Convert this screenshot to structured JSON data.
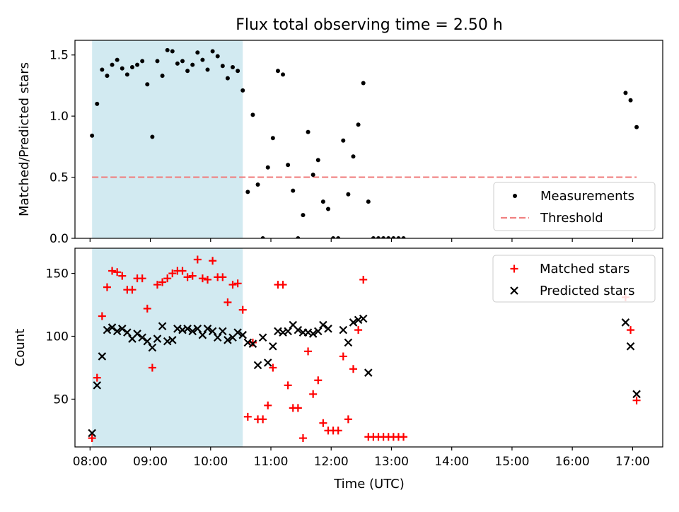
{
  "title": "Flux total observing time = 2.50 h",
  "xlabel": "Time (UTC)",
  "chart_data": [
    {
      "type": "scatter",
      "ylabel": "Matched/Predicted stars",
      "xlim": [
        "07:45",
        "17:30"
      ],
      "ylim": [
        0,
        1.62
      ],
      "yticks": [
        "0.0",
        "0.5",
        "1.0",
        "1.5"
      ],
      "xticks": [
        "08:00",
        "09:00",
        "10:00",
        "11:00",
        "12:00",
        "13:00",
        "14:00",
        "15:00",
        "16:00",
        "17:00"
      ],
      "shaded_span": [
        "08:02",
        "10:32"
      ],
      "shaded_color": "#add8e6",
      "legend_position": "lower right",
      "threshold": {
        "name": "Threshold",
        "value": 0.5,
        "x_range": [
          "08:02",
          "17:04"
        ],
        "color": "#f08080",
        "style": "dashed"
      },
      "series": [
        {
          "name": "Measurements",
          "color": "#000000",
          "marker": "point",
          "points": [
            [
              "08:02",
              0.84
            ],
            [
              "08:07",
              1.1
            ],
            [
              "08:12",
              1.38
            ],
            [
              "08:17",
              1.33
            ],
            [
              "08:22",
              1.42
            ],
            [
              "08:27",
              1.46
            ],
            [
              "08:32",
              1.39
            ],
            [
              "08:37",
              1.34
            ],
            [
              "08:42",
              1.4
            ],
            [
              "08:47",
              1.42
            ],
            [
              "08:52",
              1.45
            ],
            [
              "08:57",
              1.26
            ],
            [
              "09:02",
              0.83
            ],
            [
              "09:07",
              1.45
            ],
            [
              "09:12",
              1.33
            ],
            [
              "09:17",
              1.54
            ],
            [
              "09:22",
              1.53
            ],
            [
              "09:27",
              1.43
            ],
            [
              "09:32",
              1.45
            ],
            [
              "09:37",
              1.37
            ],
            [
              "09:42",
              1.42
            ],
            [
              "09:47",
              1.52
            ],
            [
              "09:52",
              1.46
            ],
            [
              "09:57",
              1.38
            ],
            [
              "10:02",
              1.53
            ],
            [
              "10:07",
              1.49
            ],
            [
              "10:12",
              1.41
            ],
            [
              "10:17",
              1.31
            ],
            [
              "10:22",
              1.4
            ],
            [
              "10:27",
              1.37
            ],
            [
              "10:32",
              1.21
            ],
            [
              "10:37",
              0.38
            ],
            [
              "10:42",
              1.01
            ],
            [
              "10:47",
              0.44
            ],
            [
              "10:52",
              0.0
            ],
            [
              "10:57",
              0.58
            ],
            [
              "11:02",
              0.82
            ],
            [
              "11:07",
              1.37
            ],
            [
              "11:12",
              1.34
            ],
            [
              "11:17",
              0.6
            ],
            [
              "11:22",
              0.39
            ],
            [
              "11:27",
              0.0
            ],
            [
              "11:32",
              0.19
            ],
            [
              "11:37",
              0.87
            ],
            [
              "11:42",
              0.52
            ],
            [
              "11:47",
              0.64
            ],
            [
              "11:52",
              0.3
            ],
            [
              "11:57",
              0.24
            ],
            [
              "12:02",
              0.0
            ],
            [
              "12:07",
              0.0
            ],
            [
              "12:12",
              0.8
            ],
            [
              "12:17",
              0.36
            ],
            [
              "12:22",
              0.67
            ],
            [
              "12:27",
              0.93
            ],
            [
              "12:32",
              1.27
            ],
            [
              "12:37",
              0.3
            ],
            [
              "12:42",
              0.0
            ],
            [
              "12:47",
              0.0
            ],
            [
              "12:52",
              0.0
            ],
            [
              "12:57",
              0.0
            ],
            [
              "13:02",
              0.0
            ],
            [
              "13:07",
              0.0
            ],
            [
              "13:12",
              0.0
            ],
            [
              "16:53",
              1.19
            ],
            [
              "16:58",
              1.13
            ],
            [
              "17:04",
              0.91
            ]
          ]
        }
      ]
    },
    {
      "type": "scatter",
      "ylabel": "Count",
      "xlim": [
        "07:45",
        "17:30"
      ],
      "ylim": [
        12,
        170
      ],
      "yticks": [
        "50",
        "100",
        "150"
      ],
      "xticks": [
        "08:00",
        "09:00",
        "10:00",
        "11:00",
        "12:00",
        "13:00",
        "14:00",
        "15:00",
        "16:00",
        "17:00"
      ],
      "shaded_span": [
        "08:02",
        "10:32"
      ],
      "shaded_color": "#add8e6",
      "legend_position": "upper right",
      "series": [
        {
          "name": "Matched stars",
          "color": "#ff0000",
          "marker": "plus",
          "points": [
            [
              "08:02",
              19
            ],
            [
              "08:07",
              67
            ],
            [
              "08:12",
              116
            ],
            [
              "08:17",
              139
            ],
            [
              "08:22",
              152
            ],
            [
              "08:27",
              151
            ],
            [
              "08:32",
              148
            ],
            [
              "08:37",
              137
            ],
            [
              "08:42",
              137
            ],
            [
              "08:47",
              146
            ],
            [
              "08:52",
              146
            ],
            [
              "08:57",
              122
            ],
            [
              "09:02",
              75
            ],
            [
              "09:07",
              141
            ],
            [
              "09:12",
              143
            ],
            [
              "09:17",
              146
            ],
            [
              "09:22",
              150
            ],
            [
              "09:27",
              152
            ],
            [
              "09:32",
              152
            ],
            [
              "09:37",
              147
            ],
            [
              "09:42",
              148
            ],
            [
              "09:47",
              161
            ],
            [
              "09:52",
              146
            ],
            [
              "09:57",
              145
            ],
            [
              "10:02",
              160
            ],
            [
              "10:07",
              147
            ],
            [
              "10:12",
              147
            ],
            [
              "10:17",
              127
            ],
            [
              "10:22",
              141
            ],
            [
              "10:27",
              142
            ],
            [
              "10:32",
              121
            ],
            [
              "10:37",
              36
            ],
            [
              "10:42",
              95
            ],
            [
              "10:47",
              34
            ],
            [
              "10:52",
              34
            ],
            [
              "10:57",
              45
            ],
            [
              "11:02",
              75
            ],
            [
              "11:07",
              141
            ],
            [
              "11:12",
              141
            ],
            [
              "11:17",
              61
            ],
            [
              "11:22",
              43
            ],
            [
              "11:27",
              43
            ],
            [
              "11:32",
              19
            ],
            [
              "11:37",
              88
            ],
            [
              "11:42",
              54
            ],
            [
              "11:47",
              65
            ],
            [
              "11:52",
              31
            ],
            [
              "11:57",
              25
            ],
            [
              "12:02",
              25
            ],
            [
              "12:07",
              25
            ],
            [
              "12:12",
              84
            ],
            [
              "12:17",
              34
            ],
            [
              "12:22",
              74
            ],
            [
              "12:27",
              105
            ],
            [
              "12:32",
              145
            ],
            [
              "12:37",
              20
            ],
            [
              "12:42",
              20
            ],
            [
              "12:47",
              20
            ],
            [
              "12:52",
              20
            ],
            [
              "12:57",
              20
            ],
            [
              "13:02",
              20
            ],
            [
              "13:07",
              20
            ],
            [
              "13:12",
              20
            ],
            [
              "16:53",
              131
            ],
            [
              "16:58",
              105
            ],
            [
              "17:04",
              49
            ]
          ]
        },
        {
          "name": "Predicted stars",
          "color": "#000000",
          "marker": "x",
          "points": [
            [
              "08:02",
              23
            ],
            [
              "08:07",
              61
            ],
            [
              "08:12",
              84
            ],
            [
              "08:17",
              105
            ],
            [
              "08:22",
              107
            ],
            [
              "08:27",
              104
            ],
            [
              "08:32",
              106
            ],
            [
              "08:37",
              103
            ],
            [
              "08:42",
              98
            ],
            [
              "08:47",
              102
            ],
            [
              "08:52",
              99
            ],
            [
              "08:57",
              96
            ],
            [
              "09:02",
              91
            ],
            [
              "09:07",
              98
            ],
            [
              "09:12",
              108
            ],
            [
              "09:17",
              96
            ],
            [
              "09:22",
              97
            ],
            [
              "09:27",
              106
            ],
            [
              "09:32",
              105
            ],
            [
              "09:37",
              106
            ],
            [
              "09:42",
              104
            ],
            [
              "09:47",
              106
            ],
            [
              "09:52",
              101
            ],
            [
              "09:57",
              106
            ],
            [
              "10:02",
              104
            ],
            [
              "10:07",
              99
            ],
            [
              "10:12",
              104
            ],
            [
              "10:17",
              97
            ],
            [
              "10:22",
              99
            ],
            [
              "10:27",
              103
            ],
            [
              "10:32",
              101
            ],
            [
              "10:37",
              95
            ],
            [
              "10:42",
              94
            ],
            [
              "10:47",
              77
            ],
            [
              "10:52",
              99
            ],
            [
              "10:57",
              79
            ],
            [
              "11:02",
              92
            ],
            [
              "11:07",
              104
            ],
            [
              "11:12",
              103
            ],
            [
              "11:17",
              104
            ],
            [
              "11:22",
              109
            ],
            [
              "11:27",
              105
            ],
            [
              "11:32",
              103
            ],
            [
              "11:37",
              103
            ],
            [
              "11:42",
              102
            ],
            [
              "11:47",
              104
            ],
            [
              "11:52",
              109
            ],
            [
              "11:57",
              106
            ],
            [
              "12:12",
              105
            ],
            [
              "12:17",
              95
            ],
            [
              "12:22",
              111
            ],
            [
              "12:27",
              113
            ],
            [
              "12:32",
              114
            ],
            [
              "12:37",
              71
            ],
            [
              "16:53",
              111
            ],
            [
              "16:58",
              92
            ],
            [
              "17:04",
              54
            ]
          ]
        }
      ]
    }
  ]
}
